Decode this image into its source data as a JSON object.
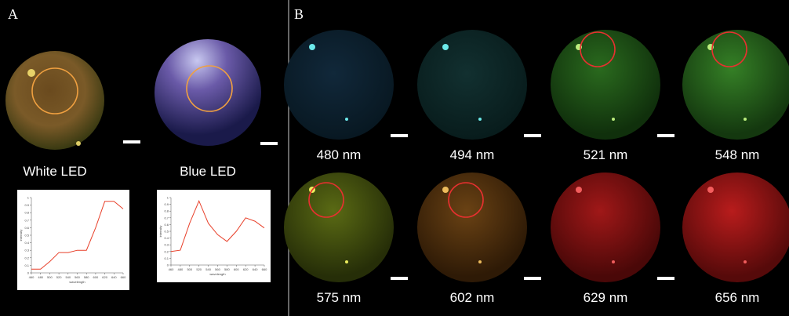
{
  "panel_a": {
    "label": "A",
    "images": [
      {
        "label": "White LED",
        "spectrum": {
          "x_label": "wavelength",
          "y_label": "intensity",
          "x": [
            460,
            480,
            500,
            520,
            540,
            560,
            580,
            600,
            620,
            640,
            660
          ],
          "values": [
            0.05,
            0.05,
            0.15,
            0.27,
            0.27,
            0.3,
            0.3,
            0.6,
            0.95,
            0.95,
            0.85
          ],
          "xlim": [
            460,
            660
          ],
          "ylim": [
            0,
            1
          ],
          "xticks": [
            460,
            480,
            500,
            520,
            540,
            560,
            580,
            600,
            620,
            640,
            660
          ],
          "yticks": [
            0,
            0.1,
            0.2,
            0.3,
            0.4,
            0.5,
            0.6,
            0.7,
            0.8,
            0.9,
            1
          ],
          "color": "#e8402a"
        }
      },
      {
        "label": "Blue LED",
        "spectrum": {
          "x_label": "wavelength",
          "y_label": "intensity",
          "x": [
            460,
            480,
            500,
            520,
            540,
            560,
            580,
            600,
            620,
            640,
            660
          ],
          "values": [
            0.2,
            0.22,
            0.62,
            0.95,
            0.62,
            0.45,
            0.35,
            0.5,
            0.7,
            0.65,
            0.55
          ],
          "xlim": [
            460,
            660
          ],
          "ylim": [
            0,
            1
          ],
          "xticks": [
            460,
            480,
            500,
            520,
            540,
            560,
            580,
            600,
            620,
            640,
            660
          ],
          "yticks": [
            0,
            0.1,
            0.2,
            0.3,
            0.4,
            0.5,
            0.6,
            0.7,
            0.8,
            0.9,
            1
          ],
          "color": "#e8402a"
        }
      }
    ]
  },
  "panel_b": {
    "label": "B",
    "images": [
      "480 nm",
      "494 nm",
      "521 nm",
      "548 nm",
      "575 nm",
      "602 nm",
      "629 nm",
      "656 nm"
    ]
  }
}
